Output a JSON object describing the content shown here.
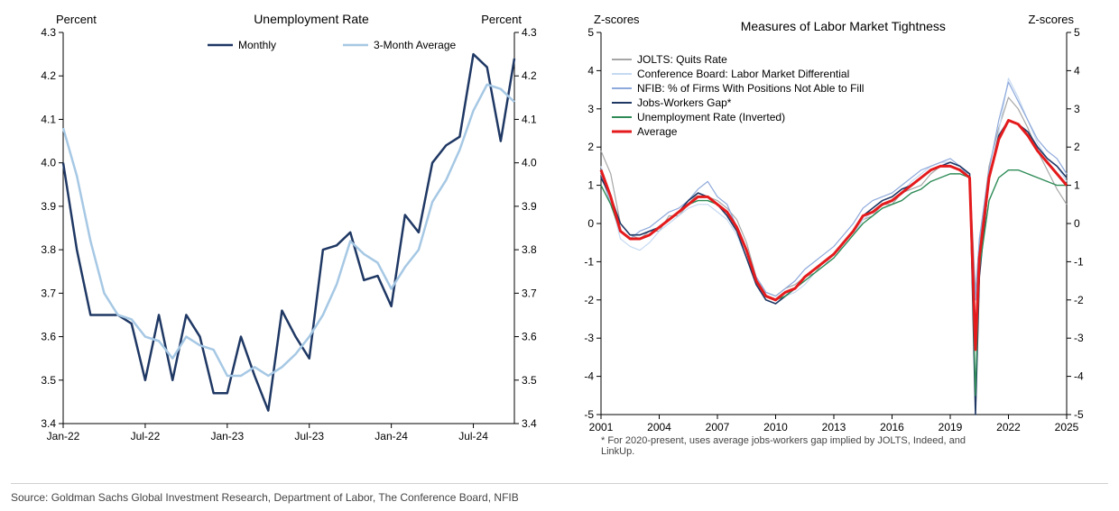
{
  "global": {
    "background_color": "#ffffff",
    "axis_font_color": "#000000",
    "axis_fontsize": 12,
    "title_fontsize": 14,
    "legend_fontsize": 12,
    "axis_line_color": "#000000",
    "divider_color": "#d0d0d0"
  },
  "left_chart": {
    "type": "line",
    "title": "Unemployment Rate",
    "y_label_left": "Percent",
    "y_label_right": "Percent",
    "ylim": [
      3.4,
      4.3
    ],
    "ytick_step": 0.1,
    "yticks": [
      3.4,
      3.5,
      3.6,
      3.7,
      3.8,
      3.9,
      4.0,
      4.1,
      4.2,
      4.3
    ],
    "x_categories": [
      "Jan-22",
      "Feb-22",
      "Mar-22",
      "Apr-22",
      "May-22",
      "Jun-22",
      "Jul-22",
      "Aug-22",
      "Sep-22",
      "Oct-22",
      "Nov-22",
      "Dec-22",
      "Jan-23",
      "Feb-23",
      "Mar-23",
      "Apr-23",
      "May-23",
      "Jun-23",
      "Jul-23",
      "Aug-23",
      "Sep-23",
      "Oct-23",
      "Nov-23",
      "Dec-23",
      "Jan-24",
      "Feb-24",
      "Mar-24",
      "Apr-24",
      "May-24",
      "Jun-24",
      "Jul-24",
      "Aug-24",
      "Sep-24",
      "Oct-24"
    ],
    "x_tick_labels": [
      "Jan-22",
      "Jul-22",
      "Jan-23",
      "Jul-23",
      "Jan-24",
      "Jul-24"
    ],
    "x_tick_positions": [
      0,
      6,
      12,
      18,
      24,
      30
    ],
    "series": [
      {
        "name": "Monthly",
        "color": "#1f3864",
        "line_width": 2.5,
        "values": [
          4.0,
          3.8,
          3.65,
          3.65,
          3.65,
          3.63,
          3.5,
          3.65,
          3.5,
          3.65,
          3.6,
          3.47,
          3.47,
          3.6,
          3.51,
          3.43,
          3.66,
          3.6,
          3.55,
          3.8,
          3.81,
          3.84,
          3.73,
          3.74,
          3.67,
          3.88,
          3.84,
          4.0,
          4.04,
          4.06,
          4.25,
          4.22,
          4.05,
          4.24
        ]
      },
      {
        "name": "3-Month Average",
        "color": "#a6c8e4",
        "line_width": 2.5,
        "values": [
          4.08,
          3.97,
          3.82,
          3.7,
          3.65,
          3.64,
          3.6,
          3.59,
          3.55,
          3.6,
          3.58,
          3.57,
          3.51,
          3.51,
          3.53,
          3.51,
          3.53,
          3.56,
          3.6,
          3.65,
          3.72,
          3.82,
          3.79,
          3.77,
          3.71,
          3.76,
          3.8,
          3.91,
          3.96,
          4.03,
          4.12,
          4.18,
          4.17,
          4.14
        ]
      }
    ],
    "legend_position": "top-center"
  },
  "right_chart": {
    "type": "line",
    "title": "Measures of Labor Market Tightness",
    "y_label_left": "Z-scores",
    "y_label_right": "Z-scores",
    "ylim": [
      -5,
      5
    ],
    "ytick_step": 1,
    "yticks": [
      -5,
      -4,
      -3,
      -2,
      -1,
      0,
      1,
      2,
      3,
      4,
      5
    ],
    "x_years": [
      2001,
      2004,
      2007,
      2010,
      2013,
      2016,
      2019,
      2022,
      2025
    ],
    "x_start": 2001,
    "x_end": 2025,
    "footnote": "* For 2020-present, uses average jobs-workers gap implied by JOLTS, Indeed, and LinkUp.",
    "series": [
      {
        "name": "JOLTS: Quits Rate",
        "color": "#a6a6a6",
        "line_width": 1.2
      },
      {
        "name": "Conference Board: Labor Market Differential",
        "color": "#c5d9f1",
        "line_width": 1.2
      },
      {
        "name": "NFIB: % of Firms With Positions Not Able to Fill",
        "color": "#8ea9db",
        "line_width": 1.2
      },
      {
        "name": "Jobs-Workers Gap*",
        "color": "#1f3864",
        "line_width": 1.6
      },
      {
        "name": "Unemployment Rate (Inverted)",
        "color": "#2e8b57",
        "line_width": 1.4
      },
      {
        "name": "Average",
        "color": "#e41a1c",
        "line_width": 3.0
      }
    ],
    "x_dense": [
      2001.0,
      2001.5,
      2002.0,
      2002.5,
      2003.0,
      2003.5,
      2004.0,
      2004.5,
      2005.0,
      2005.5,
      2006.0,
      2006.5,
      2007.0,
      2007.5,
      2008.0,
      2008.5,
      2009.0,
      2009.5,
      2010.0,
      2010.5,
      2011.0,
      2011.5,
      2012.0,
      2012.5,
      2013.0,
      2013.5,
      2014.0,
      2014.5,
      2015.0,
      2015.5,
      2016.0,
      2016.5,
      2017.0,
      2017.5,
      2018.0,
      2018.5,
      2019.0,
      2019.5,
      2020.0,
      2020.3,
      2020.5,
      2021.0,
      2021.5,
      2022.0,
      2022.5,
      2023.0,
      2023.5,
      2024.0,
      2024.5,
      2025.0
    ],
    "data": {
      "JOLTS: Quits Rate": [
        1.9,
        1.3,
        0.0,
        -0.3,
        -0.4,
        -0.2,
        -0.2,
        0.2,
        0.2,
        0.5,
        0.8,
        0.7,
        0.6,
        0.4,
        0.1,
        -0.5,
        -1.4,
        -1.8,
        -1.9,
        -1.7,
        -1.6,
        -1.4,
        -1.3,
        -1.0,
        -0.8,
        -0.6,
        -0.3,
        0.1,
        0.2,
        0.5,
        0.5,
        0.8,
        0.9,
        1.0,
        1.3,
        1.5,
        1.5,
        1.4,
        1.3,
        -1.8,
        -0.5,
        1.5,
        2.5,
        3.3,
        3.0,
        2.5,
        1.9,
        1.4,
        0.9,
        0.5
      ],
      "Conference Board: Labor Market Differential": [
        1.5,
        0.6,
        -0.4,
        -0.6,
        -0.7,
        -0.5,
        -0.2,
        0.0,
        0.2,
        0.4,
        0.5,
        0.5,
        0.3,
        0.1,
        -0.3,
        -0.9,
        -1.6,
        -1.9,
        -2.0,
        -1.9,
        -1.8,
        -1.6,
        -1.3,
        -1.1,
        -0.8,
        -0.6,
        -0.3,
        0.1,
        0.3,
        0.5,
        0.6,
        0.8,
        1.1,
        1.3,
        1.5,
        1.6,
        1.6,
        1.5,
        1.2,
        -3.0,
        -1.2,
        1.2,
        2.4,
        3.8,
        3.3,
        2.7,
        2.1,
        1.7,
        1.5,
        1.1
      ],
      "NFIB: % of Firms With Positions Not Able to Fill": [
        1.3,
        0.5,
        -0.2,
        -0.4,
        -0.2,
        -0.1,
        0.1,
        0.3,
        0.4,
        0.6,
        0.9,
        1.1,
        0.7,
        0.5,
        -0.1,
        -0.7,
        -1.4,
        -1.8,
        -1.9,
        -1.7,
        -1.5,
        -1.2,
        -1.0,
        -0.8,
        -0.6,
        -0.3,
        0.0,
        0.4,
        0.6,
        0.7,
        0.8,
        1.0,
        1.2,
        1.4,
        1.5,
        1.6,
        1.7,
        1.5,
        1.2,
        -2.0,
        -0.4,
        1.4,
        2.7,
        3.7,
        3.2,
        2.7,
        2.2,
        1.9,
        1.7,
        1.3
      ],
      "Jobs-Workers Gap*": [
        1.2,
        0.7,
        0.0,
        -0.3,
        -0.3,
        -0.2,
        -0.1,
        0.1,
        0.3,
        0.6,
        0.8,
        0.7,
        0.5,
        0.2,
        -0.2,
        -0.9,
        -1.6,
        -2.0,
        -2.1,
        -1.9,
        -1.7,
        -1.4,
        -1.2,
        -1.0,
        -0.8,
        -0.5,
        -0.2,
        0.2,
        0.4,
        0.6,
        0.7,
        0.9,
        1.0,
        1.2,
        1.4,
        1.5,
        1.6,
        1.5,
        1.3,
        -5.0,
        -1.4,
        1.2,
        2.3,
        2.7,
        2.6,
        2.4,
        2.0,
        1.7,
        1.5,
        1.2
      ],
      "Unemployment Rate (Inverted)": [
        1.0,
        0.5,
        -0.2,
        -0.4,
        -0.4,
        -0.3,
        -0.1,
        0.1,
        0.3,
        0.5,
        0.6,
        0.6,
        0.5,
        0.3,
        -0.1,
        -0.7,
        -1.5,
        -1.9,
        -2.0,
        -1.9,
        -1.7,
        -1.5,
        -1.3,
        -1.1,
        -0.9,
        -0.6,
        -0.3,
        0.0,
        0.2,
        0.4,
        0.5,
        0.6,
        0.8,
        0.9,
        1.1,
        1.2,
        1.3,
        1.3,
        1.2,
        -4.5,
        -1.2,
        0.6,
        1.2,
        1.4,
        1.4,
        1.3,
        1.2,
        1.1,
        1.0,
        1.0
      ],
      "Average": [
        1.4,
        0.7,
        -0.2,
        -0.4,
        -0.4,
        -0.3,
        -0.1,
        0.1,
        0.3,
        0.5,
        0.7,
        0.7,
        0.5,
        0.3,
        -0.1,
        -0.7,
        -1.5,
        -1.9,
        -2.0,
        -1.8,
        -1.7,
        -1.4,
        -1.2,
        -1.0,
        -0.8,
        -0.5,
        -0.2,
        0.2,
        0.3,
        0.5,
        0.6,
        0.8,
        1.0,
        1.2,
        1.4,
        1.5,
        1.5,
        1.4,
        1.2,
        -3.3,
        -0.9,
        1.2,
        2.2,
        2.7,
        2.6,
        2.3,
        1.9,
        1.6,
        1.3,
        1.0
      ]
    },
    "legend_position": "top-left-inside"
  },
  "source_text": "Source: Goldman Sachs Global Investment Research, Department of Labor, The Conference Board, NFIB"
}
